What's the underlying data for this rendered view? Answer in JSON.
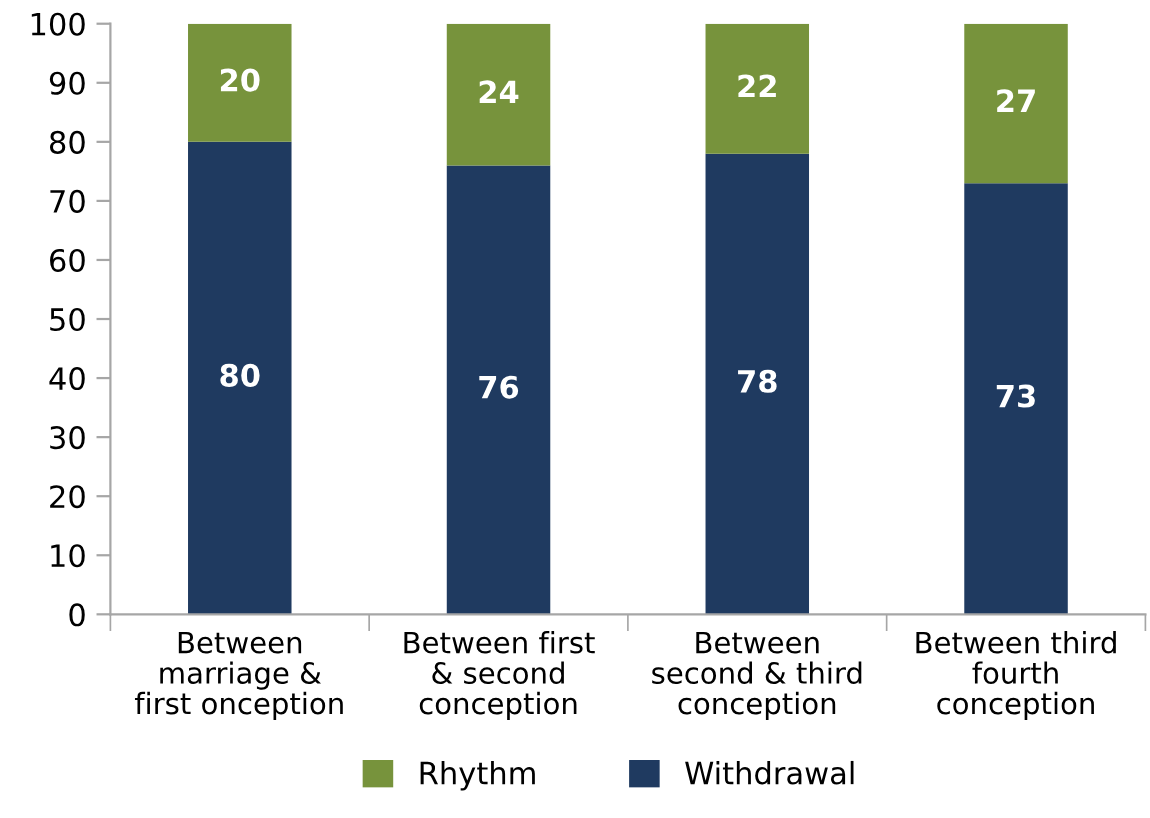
{
  "chart_data": {
    "type": "bar",
    "stacked": true,
    "categories": [
      "Between\nmarriage &\nfirst onception",
      "Between first\n& second\nconception",
      "Between\nsecond & third\nconception",
      "Between third\nfourth\nconception"
    ],
    "series": [
      {
        "name": "Withdrawal",
        "color": "#1f3a60",
        "values": [
          80,
          76,
          78,
          73
        ]
      },
      {
        "name": "Rhythm",
        "color": "#77933c",
        "values": [
          20,
          24,
          22,
          27
        ]
      }
    ],
    "ylim": [
      0,
      100
    ],
    "yticks": [
      0,
      10,
      20,
      30,
      40,
      50,
      60,
      70,
      80,
      90,
      100
    ],
    "grid": false,
    "legend": "bottom",
    "data_labels": true
  }
}
